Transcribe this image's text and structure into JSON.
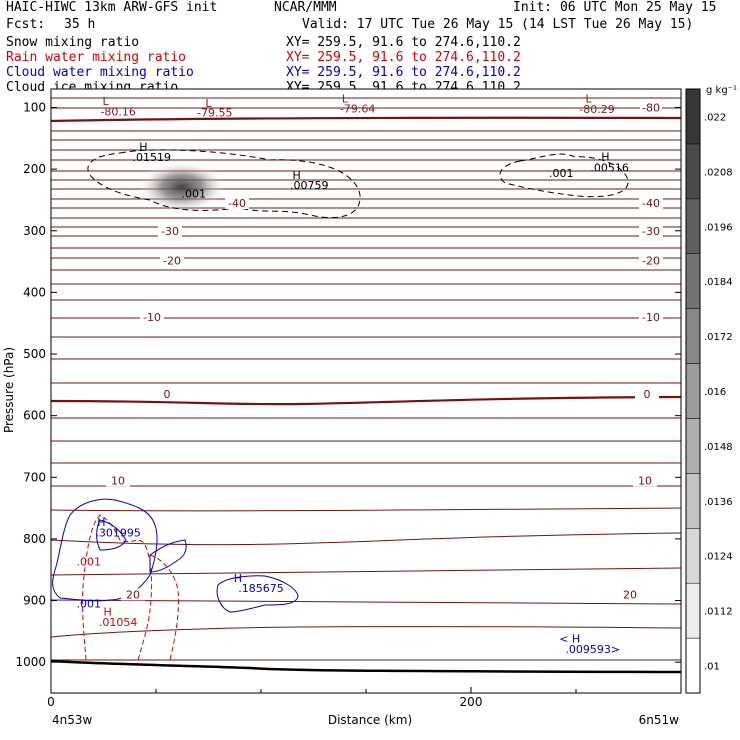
{
  "header": {
    "title": "HAIC-HIWC 13km ARW-GFS init",
    "org": "NCAR/MMM",
    "init": "Init: 06 UTC Mon 25 May 15",
    "fcst_label": "Fcst:",
    "fcst_value": "35 h",
    "valid": "Valid: 17 UTC Tue 26 May 15 (14 LST Tue 26 May 15)",
    "fields": [
      {
        "name": "Snow mixing ratio",
        "xy": "XY= 259.5, 91.6 to 274.6,110.2",
        "color": "#000000"
      },
      {
        "name": "Rain water mixing ratio",
        "xy": "XY= 259.5, 91.6 to 274.6,110.2",
        "color": "#dd0000"
      },
      {
        "name": "Cloud water mixing ratio",
        "xy": "XY= 259.5, 91.6 to 274.6,110.2",
        "color": "#0000cc"
      },
      {
        "name": "Cloud ice mixing ratio",
        "xy": "XY= 259.5, 91.6 to 274.6,110.2",
        "color": "#000000"
      }
    ]
  },
  "chart_data": {
    "type": "cross-section",
    "xlabel": "Distance (km)",
    "ylabel": "Pressure (hPa)",
    "xlim": [
      0,
      300
    ],
    "ylim": [
      1050,
      70
    ],
    "x_ticks": [
      0,
      200
    ],
    "y_ticks": [
      100,
      200,
      300,
      400,
      500,
      600,
      700,
      800,
      900,
      1000
    ],
    "endpoints": {
      "left": "4n53w",
      "right": "6n51w"
    },
    "colorbar": {
      "unit": "g kg⁻¹",
      "labels": [
        ".01",
        ".0112",
        ".0124",
        ".0136",
        ".0148",
        ".016",
        ".0172",
        ".0184",
        ".0196",
        ".0208",
        ".022"
      ]
    },
    "temperature_contours": [
      {
        "label": "-80",
        "p": 100
      },
      {
        "label": "-40",
        "p": 255
      },
      {
        "label": "-30",
        "p": 300
      },
      {
        "label": "-20",
        "p": 348
      },
      {
        "label": "-10",
        "p": 440
      },
      {
        "label": "0",
        "p": 565
      },
      {
        "label": "10",
        "p": 705
      },
      {
        "label": "20",
        "p": 890
      }
    ],
    "annotations": [
      {
        "text": "L",
        "x": 26,
        "p": 96,
        "color": "#8b1a1a"
      },
      {
        "text": "-80.16",
        "x": 32,
        "p": 113,
        "color": "#8b1a1a"
      },
      {
        "text": "L",
        "x": 75,
        "p": 99,
        "color": "#8b1a1a"
      },
      {
        "text": "-79.55",
        "x": 78,
        "p": 115,
        "color": "#8b1a1a"
      },
      {
        "text": "L",
        "x": 140,
        "p": 92,
        "color": "#8b1a1a"
      },
      {
        "text": "-79.64",
        "x": 146,
        "p": 108,
        "color": "#8b1a1a"
      },
      {
        "text": "L",
        "x": 256,
        "p": 92,
        "color": "#8b1a1a"
      },
      {
        "text": "-80.29",
        "x": 260,
        "p": 109,
        "color": "#8b1a1a"
      },
      {
        "text": "H",
        "x": 44,
        "p": 170,
        "color": "#000000"
      },
      {
        "text": ".01519",
        "x": 48,
        "p": 187,
        "color": "#000000"
      },
      {
        "text": ".001",
        "x": 68,
        "p": 246,
        "color": "#000000"
      },
      {
        "text": "H",
        "x": 117,
        "p": 216,
        "color": "#000000"
      },
      {
        "text": ".00759",
        "x": 123,
        "p": 232,
        "color": "#000000"
      },
      {
        "text": ".001",
        "x": 243,
        "p": 213,
        "color": "#000000"
      },
      {
        "text": "H",
        "x": 264,
        "p": 186,
        "color": "#000000"
      },
      {
        "text": ".00516",
        "x": 266,
        "p": 204,
        "color": "#000000"
      },
      {
        "text": "H",
        "x": 24,
        "p": 779,
        "color": "#0000cc"
      },
      {
        "text": ".301995",
        "x": 32,
        "p": 796,
        "color": "#0000cc"
      },
      {
        "text": ".001",
        "x": 18,
        "p": 843,
        "color": "#dd0000"
      },
      {
        "text": ".001",
        "x": 18,
        "p": 911,
        "color": "#0000cc"
      },
      {
        "text": "H",
        "x": 27,
        "p": 924,
        "color": "#dd0000"
      },
      {
        "text": ".01054",
        "x": 32,
        "p": 941,
        "color": "#dd0000"
      },
      {
        "text": "H",
        "x": 89,
        "p": 870,
        "color": "#0000cc"
      },
      {
        "text": ".185675",
        "x": 100,
        "p": 886,
        "color": "#0000cc"
      },
      {
        "text": "<  H",
        "x": 247,
        "p": 968,
        "color": "#0000cc"
      },
      {
        "text": ".009593>",
        "x": 258,
        "p": 985,
        "color": "#0000cc"
      }
    ],
    "grid": false,
    "legend": "none"
  }
}
